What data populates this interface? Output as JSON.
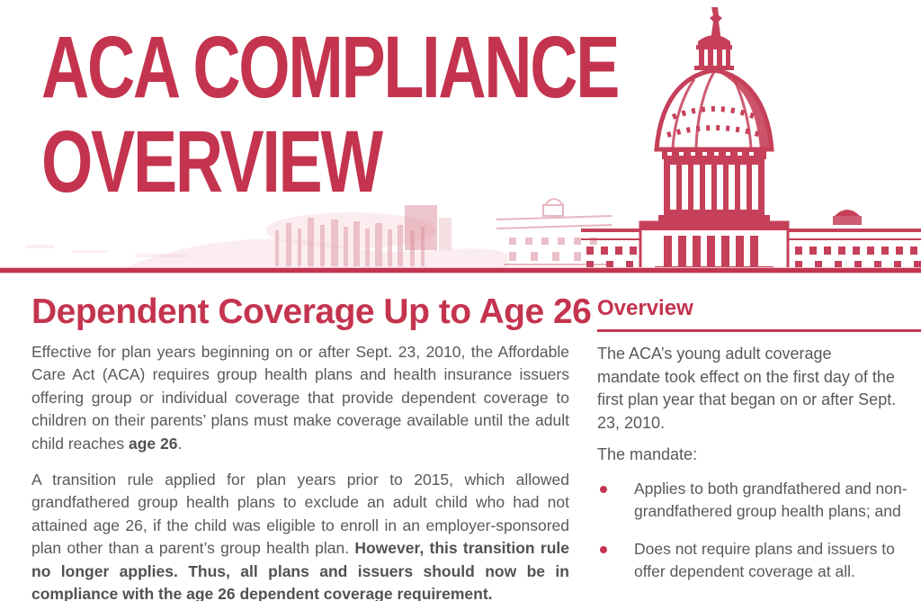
{
  "colors": {
    "brand_red": "#C4344F",
    "body_gray": "#58595B"
  },
  "header": {
    "title_line1": "ACA COMPLIANCE",
    "title_line2": "OVERVIEW",
    "capitol_icon": "us-capitol-building-illustration"
  },
  "article": {
    "heading": "Dependent Coverage Up to Age 26",
    "paragraphs": [
      {
        "segments": [
          {
            "text": "Effective for plan years beginning on or after Sept. 23, 2010, the Affordable Care Act (ACA) requires group health plans and health insurance issuers offering group or individual coverage that provide dependent coverage to children on their parents’ plans must make coverage available until the adult child reaches ",
            "bold": false
          },
          {
            "text": "age 26",
            "bold": true
          },
          {
            "text": ".",
            "bold": false
          }
        ]
      },
      {
        "segments": [
          {
            "text": "A transition rule applied for plan years prior to 2015, which allowed grandfathered group health plans to exclude an adult child who had not attained age 26, if the child was eligible to enroll in an employer-sponsored plan other than a parent’s group health plan. ",
            "bold": false
          },
          {
            "text": "However, this transition rule no longer applies. Thus, all plans and issuers should now be in compliance with the age 26 dependent coverage requirement.",
            "bold": true
          }
        ]
      }
    ]
  },
  "sidebar": {
    "heading": "Overview",
    "intro": "The ACA’s young adult coverage mandate took effect on the first day of the first plan year that began on or after Sept. 23, 2010.",
    "mandate_label": "The mandate:",
    "bullets": [
      "Applies to both grandfathered and non-grandfathered group health plans; and",
      "Does not require plans and issuers to offer dependent coverage at all."
    ]
  }
}
